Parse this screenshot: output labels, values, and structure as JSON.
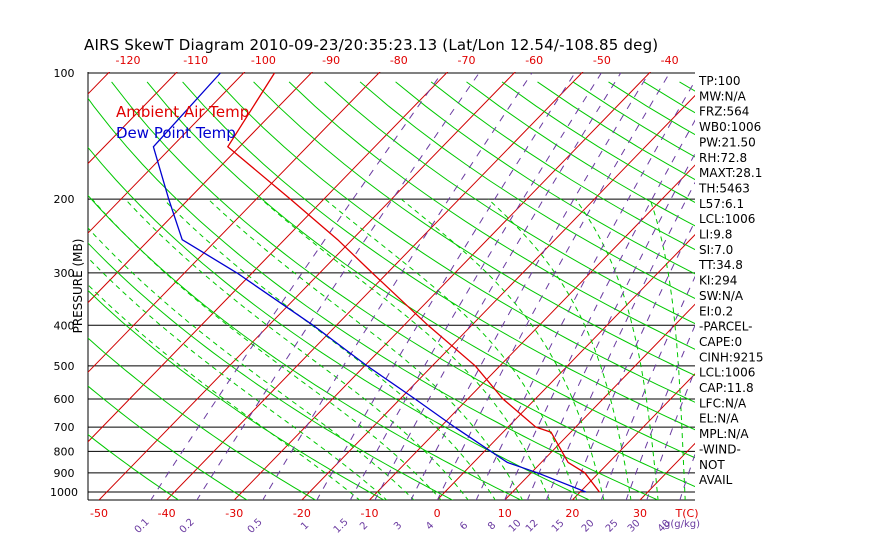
{
  "title": "AIRS SkewT Diagram 2010-09-23/20:35:23.13 (Lat/Lon 12.54/-108.85 deg)",
  "chart_data": {
    "type": "line",
    "chart_kind": "skew-t log-p",
    "ylabel": "PRESSURE (MB)",
    "y_scale": "log",
    "y_inverted": true,
    "pressure_ticks": [
      100,
      200,
      300,
      400,
      500,
      600,
      700,
      800,
      900,
      1000
    ],
    "bottom_temp_ticks": [
      -50,
      -40,
      -30,
      -20,
      -10,
      0,
      10,
      20,
      30
    ],
    "top_temp_ticks": [
      -120,
      -110,
      -100,
      -90,
      -80,
      -70,
      -60,
      -50,
      -40
    ],
    "bottom_temp_unit": "T(C)",
    "mixing_ratio_ticks": [
      "0.1",
      "0.2",
      "0.5",
      "1",
      "1.5",
      "2",
      "3",
      "4",
      "6",
      "8",
      "10",
      "12",
      "15",
      "20",
      "25",
      "30",
      "40"
    ],
    "mixing_ratio_unit": "g(g/kg)",
    "legend": [
      {
        "label": "Ambient Air Temp",
        "color": "#e00000"
      },
      {
        "label": "Dew Point Temp",
        "color": "#0000d0"
      }
    ],
    "legend_position": "top-left",
    "colors": {
      "temperature": "#e00000",
      "dewpoint": "#0000d0",
      "isotherm": "#d00000",
      "dry_adiabat": "#00c800",
      "moist_adiabat": "#00c800",
      "mixing_ratio": "#6a3aa0",
      "isobar": "#000000"
    },
    "series": [
      {
        "name": "Ambient Air Temp",
        "points": [
          {
            "p": 100,
            "t": -86
          },
          {
            "p": 150,
            "t": -82
          },
          {
            "p": 200,
            "t": -65
          },
          {
            "p": 250,
            "t": -52
          },
          {
            "p": 300,
            "t": -42
          },
          {
            "p": 400,
            "t": -26
          },
          {
            "p": 500,
            "t": -13
          },
          {
            "p": 600,
            "t": -4
          },
          {
            "p": 700,
            "t": 5
          },
          {
            "p": 720,
            "t": 8
          },
          {
            "p": 850,
            "t": 15
          },
          {
            "p": 900,
            "t": 19
          },
          {
            "p": 1000,
            "t": 24
          }
        ]
      },
      {
        "name": "Dew Point Temp",
        "points": [
          {
            "p": 100,
            "t": -94
          },
          {
            "p": 150,
            "t": -93
          },
          {
            "p": 200,
            "t": -83
          },
          {
            "p": 250,
            "t": -75
          },
          {
            "p": 300,
            "t": -62
          },
          {
            "p": 400,
            "t": -43
          },
          {
            "p": 500,
            "t": -29
          },
          {
            "p": 600,
            "t": -17
          },
          {
            "p": 700,
            "t": -7
          },
          {
            "p": 850,
            "t": 6
          },
          {
            "p": 900,
            "t": 12
          },
          {
            "p": 1000,
            "t": 22
          }
        ]
      }
    ],
    "indices": [
      "TP:100",
      "MW:N/A",
      "FRZ:564",
      "WB0:1006",
      "PW:21.50",
      "RH:72.8",
      "MAXT:28.1",
      "TH:5463",
      "L57:6.1",
      "LCL:1006",
      "LI:9.8",
      "SI:7.0",
      "TT:34.8",
      "KI:294",
      "SW:N/A",
      "EI:0.2",
      "-PARCEL-",
      "CAPE:0",
      "CINH:9215",
      "LCL:1006",
      "CAP:11.8",
      "LFC:N/A",
      "EL:N/A",
      "MPL:N/A",
      "-WIND-",
      "NOT",
      "AVAIL"
    ]
  }
}
